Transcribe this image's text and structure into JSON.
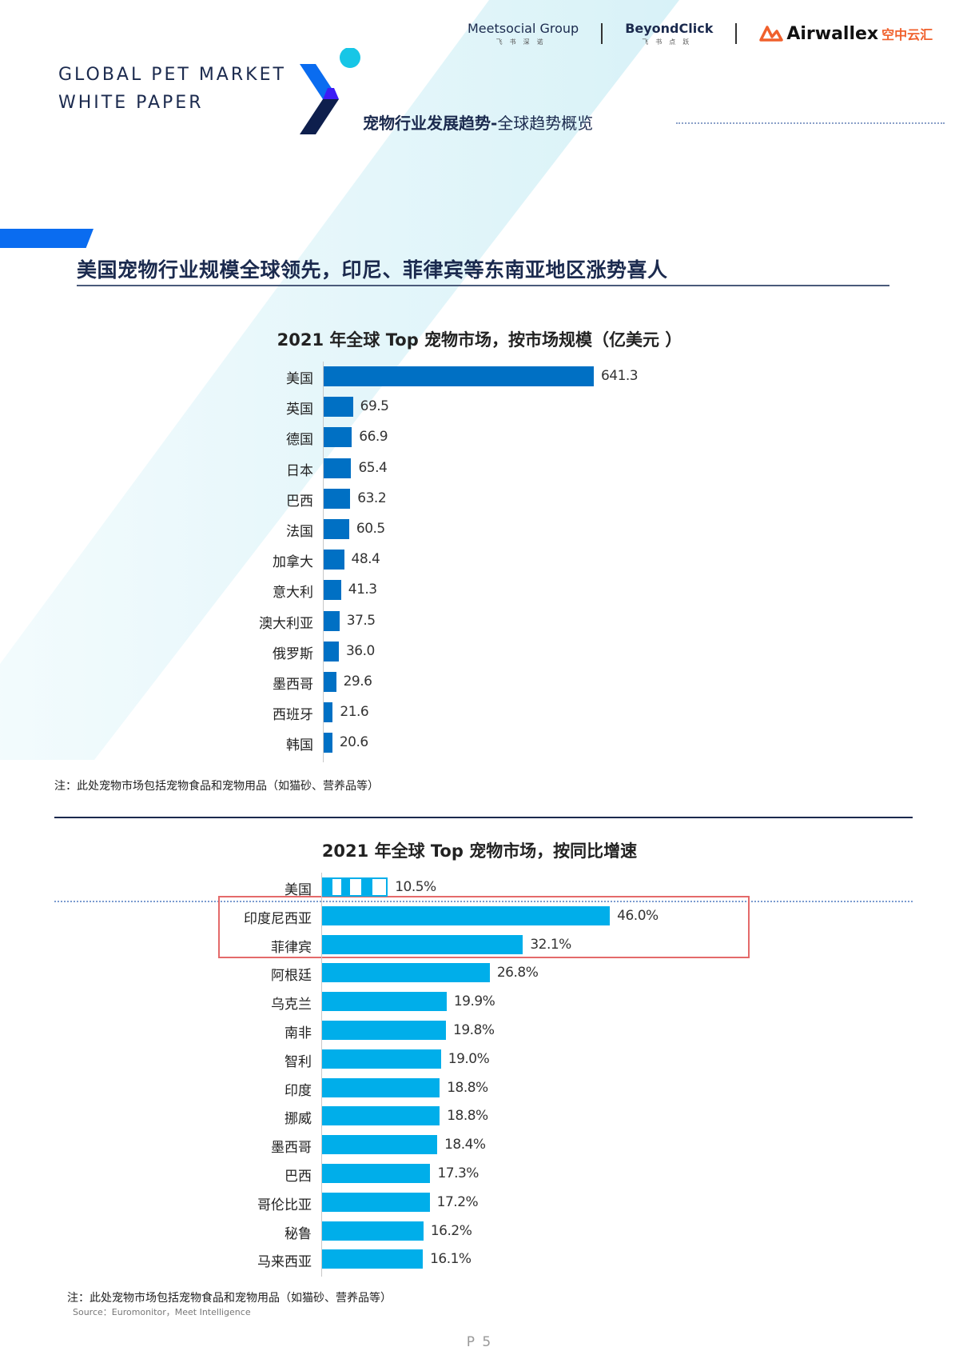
{
  "header": {
    "brand_title_line1": "GLOBAL PET MARKET",
    "brand_title_line2": "WHITE PAPER",
    "section_subtitle_bold": "宠物行业发展趋势-",
    "section_subtitle_light": "全球趋势概览",
    "logos": [
      {
        "name": "Meetsocial Group",
        "sub": "飞书深诺"
      },
      {
        "name": "BeyondClick",
        "sub": "飞书点跃"
      },
      {
        "name": "Airwallex",
        "sub": "空中云汇"
      }
    ]
  },
  "headline": "美国宠物行业规模全球领先，印尼、菲律宾等东南亚地区涨势喜人",
  "colors": {
    "bar_market_size": "#0070c4",
    "bar_growth": "#00aeea",
    "highlight_box": "#e46a6a",
    "accent": "#0a6cf0",
    "navy": "#1b2a4e"
  },
  "chart_data": [
    {
      "type": "bar",
      "orientation": "horizontal",
      "title": "2021 年全球 Top 宠物市场，按市场规模（亿美元 ）",
      "xlabel": "",
      "ylabel": "",
      "unit": "亿美元",
      "grid": false,
      "categories": [
        "美国",
        "英国",
        "德国",
        "日本",
        "巴西",
        "法国",
        "加拿大",
        "意大利",
        "澳大利亚",
        "俄罗斯",
        "墨西哥",
        "西班牙",
        "韩国"
      ],
      "values": [
        641.3,
        69.5,
        66.9,
        65.4,
        63.2,
        60.5,
        48.4,
        41.3,
        37.5,
        36.0,
        29.6,
        21.6,
        20.6
      ],
      "value_labels": [
        "641.3",
        "69.5",
        "66.9",
        "65.4",
        "63.2",
        "60.5",
        "48.4",
        "41.3",
        "37.5",
        "36.0",
        "29.6",
        "21.6",
        "20.6"
      ],
      "note": "注：此处宠物市场包括宠物食品和宠物用品（如猫砂、营养品等）"
    },
    {
      "type": "bar",
      "orientation": "horizontal",
      "title": "2021 年全球 Top 宠物市场，按同比增速",
      "xlabel": "",
      "ylabel": "",
      "unit": "%",
      "grid": false,
      "categories": [
        "美国",
        "印度尼西亚",
        "菲律宾",
        "阿根廷",
        "乌克兰",
        "南非",
        "智利",
        "印度",
        "挪威",
        "墨西哥",
        "巴西",
        "哥伦比亚",
        "秘鲁",
        "马来西亚"
      ],
      "values": [
        10.5,
        46.0,
        32.1,
        26.8,
        19.9,
        19.8,
        19.0,
        18.8,
        18.8,
        18.4,
        17.3,
        17.2,
        16.2,
        16.1
      ],
      "value_labels": [
        "10.5%",
        "46.0%",
        "32.1%",
        "26.8%",
        "19.9%",
        "19.8%",
        "19.0%",
        "18.8%",
        "18.8%",
        "18.4%",
        "17.3%",
        "17.2%",
        "16.2%",
        "16.1%"
      ],
      "highlighted": [
        "印度尼西亚",
        "菲律宾"
      ],
      "reference_category": "美国",
      "note": "注：此处宠物市场包括宠物食品和宠物用品（如猫砂、营养品等）",
      "source": "Source：Euromonitor，Meet Intelligence"
    }
  ],
  "footer": {
    "page_number": "P 5"
  }
}
